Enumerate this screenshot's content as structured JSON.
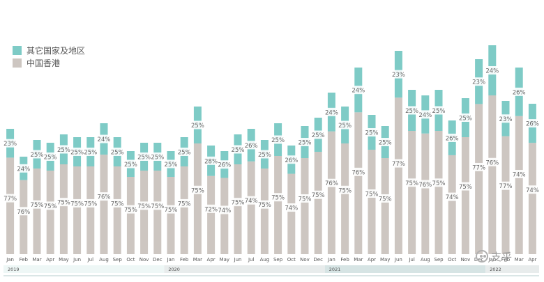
{
  "chart_data": {
    "type": "bar",
    "stacked": true,
    "legend_position": "top-left",
    "grid": false,
    "ylim": [
      0,
      100
    ],
    "colors": {
      "other": "#7ecbc6",
      "hk": "#cdc6c1",
      "label_bg": "#ffffff"
    },
    "series": [
      {
        "key": "other",
        "name": "其它国家及地区",
        "color": "#7ecbc6"
      },
      {
        "key": "hk",
        "name": "中国香港",
        "color": "#cdc6c1"
      }
    ],
    "categories": [
      "Jan",
      "Feb",
      "Mar",
      "Apr",
      "May",
      "Jun",
      "Jul",
      "Aug",
      "Sep",
      "Oct",
      "Nov",
      "Dec",
      "Jan",
      "Feb",
      "Mar",
      "Apr",
      "May",
      "Jun",
      "Jul",
      "Aug",
      "Sep",
      "Oct",
      "Nov",
      "Dec",
      "Jan",
      "Feb",
      "Mar",
      "Apr",
      "May",
      "Jun",
      "Jul",
      "Aug",
      "Sep",
      "Oct",
      "Nov",
      "Dec",
      "Jan",
      "Feb",
      "Mar",
      "Apr"
    ],
    "years": [
      {
        "label": "2019",
        "start": 0,
        "end": 12,
        "fill": "#eef7f6"
      },
      {
        "label": "2020",
        "start": 12,
        "end": 24,
        "fill": "#e8ecec"
      },
      {
        "label": "2021",
        "start": 24,
        "end": 36,
        "fill": "#d6e4e4"
      },
      {
        "label": "2022",
        "start": 36,
        "end": 40,
        "fill": "#e8ecec"
      }
    ],
    "totals": [
      45,
      35,
      41,
      40,
      43,
      42,
      42,
      47,
      42,
      37,
      40,
      40,
      37,
      42,
      53,
      39,
      37,
      43,
      45,
      41,
      47,
      39,
      46,
      49,
      58,
      53,
      67,
      50,
      46,
      73,
      59,
      57,
      59,
      48,
      56,
      70,
      75,
      55,
      67,
      54
    ],
    "other_pct": [
      "23%",
      "24%",
      "25%",
      "25%",
      "25%",
      "25%",
      "25%",
      "24%",
      "25%",
      "25%",
      "25%",
      "25%",
      "25%",
      "25%",
      "25%",
      "28%",
      "26%",
      "25%",
      "26%",
      "25%",
      "25%",
      "26%",
      "25%",
      "25%",
      "24%",
      "25%",
      "24%",
      "25%",
      "25%",
      "23%",
      "25%",
      "24%",
      "25%",
      "26%",
      "25%",
      "23%",
      "24%",
      "23%",
      "26%",
      "26%"
    ],
    "hk_pct": [
      "77%",
      "76%",
      "75%",
      "75%",
      "75%",
      "75%",
      "75%",
      "76%",
      "75%",
      "75%",
      "75%",
      "75%",
      "75%",
      "75%",
      "75%",
      "72%",
      "74%",
      "75%",
      "74%",
      "75%",
      "75%",
      "74%",
      "75%",
      "75%",
      "76%",
      "75%",
      "76%",
      "75%",
      "75%",
      "77%",
      "75%",
      "76%",
      "75%",
      "74%",
      "75%",
      "77%",
      "76%",
      "77%",
      "74%",
      "74%"
    ]
  },
  "watermark": {
    "text": "支乎"
  }
}
